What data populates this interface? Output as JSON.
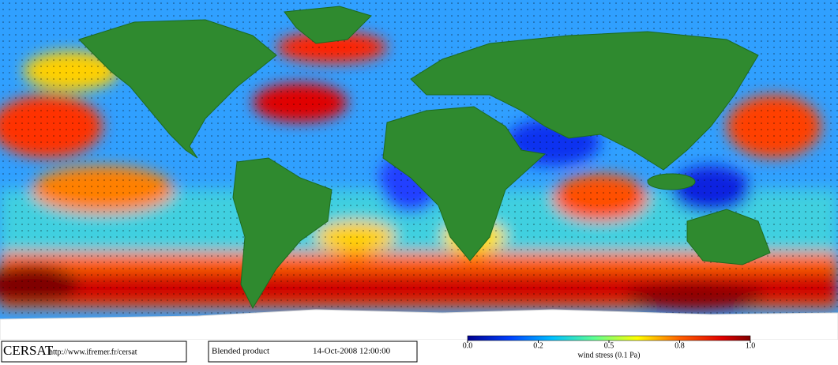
{
  "logo": {
    "name": "CERSAT",
    "url": "http://www.ifremer.fr/cersat"
  },
  "product": {
    "name": "Blended product",
    "date": "14-Oct-2008 12:00:00"
  },
  "colorbar": {
    "ticks": [
      {
        "value": 0,
        "label": "0.0"
      },
      0.2,
      0.5,
      0.8,
      {
        "value": 1,
        "label": "1.0"
      }
    ],
    "label": "wind stress (0.1 Pa)"
  }
}
